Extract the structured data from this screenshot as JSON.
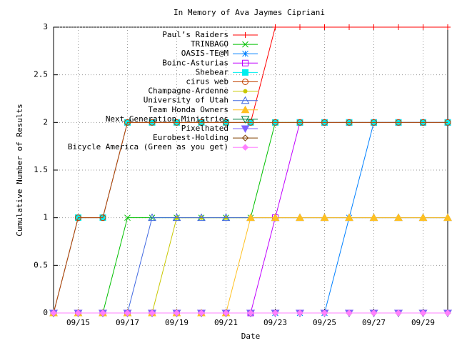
{
  "chart_data": {
    "type": "line",
    "title": "In Memory of Ava Jaymes Cipriani",
    "x_label": "Date",
    "y_label": "Cumulative Number of Results",
    "categories": [
      null,
      "09/15",
      null,
      "09/17",
      null,
      "09/19",
      null,
      "09/21",
      null,
      "09/23",
      null,
      "09/25",
      null,
      "09/27",
      null,
      "09/29",
      null
    ],
    "ylim": [
      0,
      3
    ],
    "yticks": [
      0,
      0.5,
      1,
      1.5,
      2,
      2.5,
      3
    ],
    "grid": true,
    "legend": "top-right",
    "series": [
      {
        "name": "Paul’s Raiders",
        "color": "#ff0000",
        "marker": "plus",
        "values": [
          0,
          1,
          1,
          2,
          2,
          2,
          2,
          2,
          2,
          3,
          3,
          3,
          3,
          3,
          3,
          3,
          3
        ]
      },
      {
        "name": "TRINBAGO",
        "color": "#00c000",
        "marker": "cross",
        "values": [
          0,
          0,
          0,
          1,
          1,
          1,
          1,
          1,
          1,
          2,
          2,
          2,
          2,
          2,
          2,
          2,
          2
        ]
      },
      {
        "name": "OASIS-TE@M",
        "color": "#0080ff",
        "marker": "star",
        "values": [
          0,
          0,
          0,
          0,
          0,
          0,
          0,
          0,
          0,
          0,
          0,
          0,
          1,
          2,
          2,
          2,
          2
        ]
      },
      {
        "name": "Boinc-Asturias",
        "color": "#c000ff",
        "marker": "box",
        "values": [
          0,
          0,
          0,
          0,
          0,
          0,
          0,
          0,
          0,
          1,
          2,
          2,
          2,
          2,
          2,
          2,
          2
        ]
      },
      {
        "name": "Shebear",
        "color": "#00eeee",
        "marker": "fbox",
        "values": [
          0,
          1,
          1,
          2,
          2,
          2,
          2,
          2,
          2,
          2,
          2,
          2,
          2,
          2,
          2,
          2,
          2
        ]
      },
      {
        "name": "cirus web",
        "color": "#c04000",
        "marker": "circle",
        "values": [
          0,
          1,
          1,
          2,
          2,
          2,
          2,
          2,
          2,
          2,
          2,
          2,
          2,
          2,
          2,
          2,
          2
        ]
      },
      {
        "name": "Champagne-Ardenne",
        "color": "#c8c800",
        "marker": "dot",
        "values": [
          0,
          0,
          0,
          0,
          0,
          1,
          1,
          1,
          1,
          1,
          1,
          1,
          1,
          1,
          1,
          1,
          1
        ]
      },
      {
        "name": "University of Utah",
        "color": "#4169e1",
        "marker": "tri",
        "values": [
          0,
          0,
          0,
          0,
          1,
          1,
          1,
          1,
          1,
          1,
          1,
          1,
          1,
          1,
          1,
          1,
          1
        ]
      },
      {
        "name": "Team Honda Owners",
        "color": "#ffc020",
        "marker": "ftri",
        "values": [
          0,
          0,
          0,
          0,
          0,
          0,
          0,
          0,
          1,
          1,
          1,
          1,
          1,
          1,
          1,
          1,
          1
        ]
      },
      {
        "name": "Next Generation Ministries",
        "color": "#008040",
        "marker": "itri",
        "values": [
          0,
          0,
          0,
          0,
          0,
          0,
          0,
          0,
          0,
          0,
          0,
          0,
          0,
          0,
          0,
          0,
          0
        ]
      },
      {
        "name": "Pixelhated",
        "color": "#8060ff",
        "marker": "fitri",
        "values": [
          0,
          0,
          0,
          0,
          0,
          0,
          0,
          0,
          0,
          0,
          0,
          0,
          0,
          0,
          0,
          0,
          0
        ]
      },
      {
        "name": "Eurobest-Holding",
        "color": "#804000",
        "marker": "diamond",
        "values": [
          0,
          0,
          0,
          0,
          0,
          0,
          0,
          0,
          0,
          0,
          0,
          0,
          0,
          0,
          0,
          0,
          0
        ]
      },
      {
        "name": "Bicycle America (Green as you get)",
        "color": "#ff80ff",
        "marker": "fdiamond",
        "values": [
          0,
          0,
          0,
          0,
          0,
          0,
          0,
          0,
          0,
          0,
          0,
          0,
          0,
          0,
          0,
          0,
          0
        ]
      }
    ]
  }
}
